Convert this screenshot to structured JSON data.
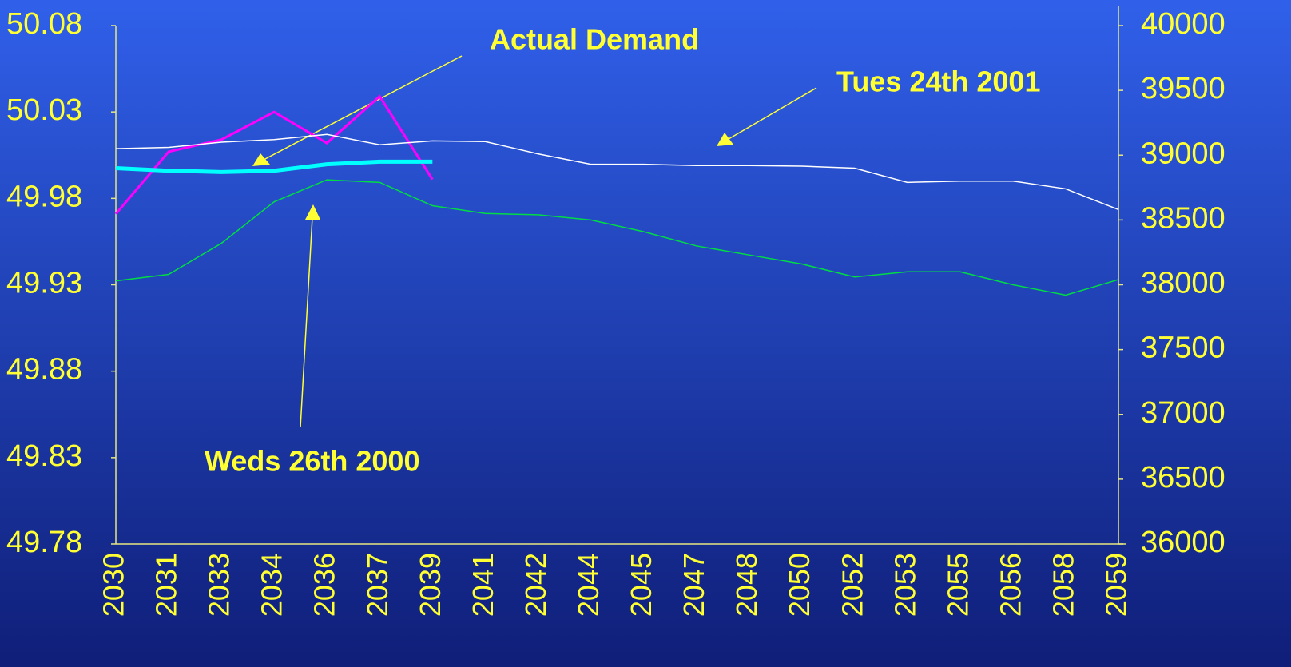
{
  "chart_data": {
    "type": "line",
    "categories": [
      "2030",
      "2031",
      "2033",
      "2034",
      "2036",
      "2037",
      "2039",
      "2041",
      "2042",
      "2044",
      "2045",
      "2047",
      "2048",
      "2050",
      "2052",
      "2053",
      "2055",
      "2056",
      "2058",
      "2059"
    ],
    "ylim": [
      49.78,
      50.08
    ],
    "yticks": [
      49.78,
      49.83,
      49.88,
      49.93,
      49.98,
      50.03,
      50.08
    ],
    "y2lim": [
      36000,
      40000
    ],
    "y2ticks": [
      36000,
      36500,
      37000,
      37500,
      38000,
      38500,
      39000,
      39500,
      40000
    ],
    "series": [
      {
        "color": "#ff00ff",
        "axis": "y",
        "values": [
          49.971,
          50.007,
          50.014,
          50.03,
          50.012,
          50.039,
          49.991,
          null,
          null,
          null,
          null,
          null,
          null,
          null,
          null,
          null,
          null,
          null,
          null,
          null
        ]
      },
      {
        "name": "Actual Demand",
        "color": "#00ffff",
        "axis": "y2",
        "values": [
          38900,
          38880,
          38870,
          38880,
          38930,
          38950,
          38950,
          null,
          null,
          null,
          null,
          null,
          null,
          null,
          null,
          null,
          null,
          null,
          null,
          null
        ]
      },
      {
        "name": "Tues 24th 2001",
        "color": "#ffffff",
        "axis": "y2",
        "values": [
          39050,
          39060,
          39100,
          39120,
          39160,
          39080,
          39110,
          39105,
          39010,
          38930,
          38930,
          38920,
          38920,
          38915,
          38900,
          38790,
          38800,
          38800,
          38740,
          38580
        ]
      },
      {
        "name": "Weds 26th 2000",
        "color": "#00dd44",
        "axis": "y2",
        "values": [
          38030,
          38080,
          38320,
          38640,
          38810,
          38790,
          38610,
          38550,
          38540,
          38500,
          38410,
          38300,
          38230,
          38160,
          38060,
          38100,
          38100,
          38000,
          37920,
          38040
        ]
      }
    ],
    "annotations": [
      "Actual Demand",
      "Tues 24th 2001",
      "Weds 26th 2000"
    ]
  }
}
